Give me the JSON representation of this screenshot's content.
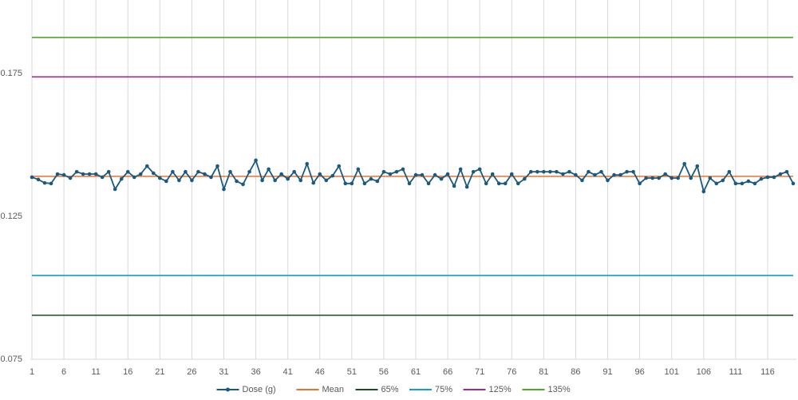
{
  "chart_data": {
    "type": "line",
    "categories": [
      1,
      null,
      null,
      null,
      null,
      6,
      null,
      null,
      null,
      null,
      11,
      null,
      null,
      null,
      null,
      16,
      null,
      null,
      null,
      null,
      21,
      null,
      null,
      null,
      null,
      26,
      null,
      null,
      null,
      null,
      31,
      null,
      null,
      null,
      null,
      36,
      null,
      null,
      null,
      null,
      41,
      null,
      null,
      null,
      null,
      46,
      null,
      null,
      null,
      null,
      51,
      null,
      null,
      null,
      null,
      56,
      null,
      null,
      null,
      null,
      61,
      null,
      null,
      null,
      null,
      66,
      null,
      null,
      null,
      null,
      71,
      null,
      null,
      null,
      null,
      76,
      null,
      null,
      null,
      null,
      81,
      null,
      null,
      null,
      null,
      86,
      null,
      null,
      null,
      null,
      91,
      null,
      null,
      null,
      null,
      96,
      null,
      null,
      null,
      null,
      101,
      null,
      null,
      null,
      null,
      106,
      null,
      null,
      null,
      null,
      111,
      null,
      null,
      null,
      null,
      116,
      null,
      null,
      null,
      null
    ],
    "ylim": [
      0.075,
      0.2
    ],
    "yticks": [
      0.075,
      0.125,
      0.175
    ],
    "grid": "x",
    "series": [
      {
        "name": "Dose (g)",
        "color": "#1b5a80",
        "markers": true,
        "values": [
          0.1387,
          0.1379,
          0.1367,
          0.1365,
          0.1398,
          0.1395,
          0.1384,
          0.1406,
          0.1398,
          0.1398,
          0.1398,
          0.1387,
          0.1406,
          0.1345,
          0.1381,
          0.1406,
          0.1387,
          0.1398,
          0.1426,
          0.1401,
          0.1384,
          0.1373,
          0.1406,
          0.1376,
          0.1406,
          0.1376,
          0.1406,
          0.1398,
          0.1387,
          0.1426,
          0.1345,
          0.1406,
          0.1373,
          0.1362,
          0.1406,
          0.1446,
          0.1376,
          0.1415,
          0.1376,
          0.1398,
          0.1381,
          0.1406,
          0.1376,
          0.1434,
          0.1367,
          0.1398,
          0.1376,
          0.1392,
          0.1426,
          0.1365,
          0.1365,
          0.1415,
          0.1365,
          0.1381,
          0.1373,
          0.1406,
          0.1398,
          0.1406,
          0.1415,
          0.1365,
          0.1395,
          0.1395,
          0.1365,
          0.1395,
          0.1381,
          0.1398,
          0.1356,
          0.1415,
          0.1353,
          0.1406,
          0.1415,
          0.1365,
          0.1398,
          0.1365,
          0.1365,
          0.1398,
          0.1365,
          0.1381,
          0.1406,
          0.1406,
          0.1406,
          0.1406,
          0.1406,
          0.1398,
          0.1406,
          0.1395,
          0.1376,
          0.1406,
          0.1395,
          0.1406,
          0.1376,
          0.1395,
          0.1395,
          0.1406,
          0.1406,
          0.1365,
          0.1384,
          0.1384,
          0.1384,
          0.1398,
          0.1384,
          0.1384,
          0.1434,
          0.1384,
          0.1426,
          0.1337,
          0.1384,
          0.1365,
          0.1376,
          0.1406,
          0.1365,
          0.1365,
          0.1373,
          0.1365,
          0.1381,
          0.1387,
          0.1387,
          0.1398,
          0.1406,
          0.1365
        ]
      },
      {
        "name": "Mean",
        "color": "#e97132",
        "values": [
          0.139,
          0.139,
          0.139,
          0.139,
          0.139,
          0.139,
          0.139,
          0.139,
          0.139,
          0.139,
          0.139,
          0.139,
          0.139,
          0.139,
          0.139,
          0.139,
          0.139,
          0.139,
          0.139,
          0.139,
          0.139,
          0.139,
          0.139,
          0.139,
          0.139,
          0.139,
          0.139,
          0.139,
          0.139,
          0.139,
          0.139,
          0.139,
          0.139,
          0.139,
          0.139,
          0.139,
          0.139,
          0.139,
          0.139,
          0.139,
          0.139,
          0.139,
          0.139,
          0.139,
          0.139,
          0.139,
          0.139,
          0.139,
          0.139,
          0.139,
          0.139,
          0.139,
          0.139,
          0.139,
          0.139,
          0.139,
          0.139,
          0.139,
          0.139,
          0.139,
          0.139,
          0.139,
          0.139,
          0.139,
          0.139,
          0.139,
          0.139,
          0.139,
          0.139,
          0.139,
          0.139,
          0.139,
          0.139,
          0.139,
          0.139,
          0.139,
          0.139,
          0.139,
          0.139,
          0.139,
          0.139,
          0.139,
          0.139,
          0.139,
          0.139,
          0.139,
          0.139,
          0.139,
          0.139,
          0.139,
          0.139,
          0.139,
          0.139,
          0.139,
          0.139,
          0.139,
          0.139,
          0.139,
          0.139,
          0.139,
          0.139,
          0.139,
          0.139,
          0.139,
          0.139,
          0.139,
          0.139,
          0.139,
          0.139,
          0.139,
          0.139,
          0.139,
          0.139,
          0.139,
          0.139,
          0.139,
          0.139,
          0.139,
          0.139,
          0.139
        ]
      },
      {
        "name": "65%",
        "color": "#1a4d22",
        "values": [
          0.0904,
          0.0904,
          0.0904,
          0.0904,
          0.0904,
          0.0904,
          0.0904,
          0.0904,
          0.0904,
          0.0904,
          0.0904,
          0.0904,
          0.0904,
          0.0904,
          0.0904,
          0.0904,
          0.0904,
          0.0904,
          0.0904,
          0.0904,
          0.0904,
          0.0904,
          0.0904,
          0.0904,
          0.0904,
          0.0904,
          0.0904,
          0.0904,
          0.0904,
          0.0904,
          0.0904,
          0.0904,
          0.0904,
          0.0904,
          0.0904,
          0.0904,
          0.0904,
          0.0904,
          0.0904,
          0.0904,
          0.0904,
          0.0904,
          0.0904,
          0.0904,
          0.0904,
          0.0904,
          0.0904,
          0.0904,
          0.0904,
          0.0904,
          0.0904,
          0.0904,
          0.0904,
          0.0904,
          0.0904,
          0.0904,
          0.0904,
          0.0904,
          0.0904,
          0.0904,
          0.0904,
          0.0904,
          0.0904,
          0.0904,
          0.0904,
          0.0904,
          0.0904,
          0.0904,
          0.0904,
          0.0904,
          0.0904,
          0.0904,
          0.0904,
          0.0904,
          0.0904,
          0.0904,
          0.0904,
          0.0904,
          0.0904,
          0.0904,
          0.0904,
          0.0904,
          0.0904,
          0.0904,
          0.0904,
          0.0904,
          0.0904,
          0.0904,
          0.0904,
          0.0904,
          0.0904,
          0.0904,
          0.0904,
          0.0904,
          0.0904,
          0.0904,
          0.0904,
          0.0904,
          0.0904,
          0.0904,
          0.0904,
          0.0904,
          0.0904,
          0.0904,
          0.0904,
          0.0904,
          0.0904,
          0.0904,
          0.0904,
          0.0904,
          0.0904,
          0.0904,
          0.0904,
          0.0904,
          0.0904,
          0.0904,
          0.0904,
          0.0904,
          0.0904,
          0.0904
        ]
      },
      {
        "name": "75%",
        "color": "#0f9ed5",
        "values": [
          0.1043,
          0.1043,
          0.1043,
          0.1043,
          0.1043,
          0.1043,
          0.1043,
          0.1043,
          0.1043,
          0.1043,
          0.1043,
          0.1043,
          0.1043,
          0.1043,
          0.1043,
          0.1043,
          0.1043,
          0.1043,
          0.1043,
          0.1043,
          0.1043,
          0.1043,
          0.1043,
          0.1043,
          0.1043,
          0.1043,
          0.1043,
          0.1043,
          0.1043,
          0.1043,
          0.1043,
          0.1043,
          0.1043,
          0.1043,
          0.1043,
          0.1043,
          0.1043,
          0.1043,
          0.1043,
          0.1043,
          0.1043,
          0.1043,
          0.1043,
          0.1043,
          0.1043,
          0.1043,
          0.1043,
          0.1043,
          0.1043,
          0.1043,
          0.1043,
          0.1043,
          0.1043,
          0.1043,
          0.1043,
          0.1043,
          0.1043,
          0.1043,
          0.1043,
          0.1043,
          0.1043,
          0.1043,
          0.1043,
          0.1043,
          0.1043,
          0.1043,
          0.1043,
          0.1043,
          0.1043,
          0.1043,
          0.1043,
          0.1043,
          0.1043,
          0.1043,
          0.1043,
          0.1043,
          0.1043,
          0.1043,
          0.1043,
          0.1043,
          0.1043,
          0.1043,
          0.1043,
          0.1043,
          0.1043,
          0.1043,
          0.1043,
          0.1043,
          0.1043,
          0.1043,
          0.1043,
          0.1043,
          0.1043,
          0.1043,
          0.1043,
          0.1043,
          0.1043,
          0.1043,
          0.1043,
          0.1043,
          0.1043,
          0.1043,
          0.1043,
          0.1043,
          0.1043,
          0.1043,
          0.1043,
          0.1043,
          0.1043,
          0.1043,
          0.1043,
          0.1043,
          0.1043,
          0.1043,
          0.1043,
          0.1043,
          0.1043,
          0.1043,
          0.1043,
          0.1043
        ]
      },
      {
        "name": "125%",
        "color": "#a02b93",
        "values": [
          0.1738,
          0.1738,
          0.1738,
          0.1738,
          0.1738,
          0.1738,
          0.1738,
          0.1738,
          0.1738,
          0.1738,
          0.1738,
          0.1738,
          0.1738,
          0.1738,
          0.1738,
          0.1738,
          0.1738,
          0.1738,
          0.1738,
          0.1738,
          0.1738,
          0.1738,
          0.1738,
          0.1738,
          0.1738,
          0.1738,
          0.1738,
          0.1738,
          0.1738,
          0.1738,
          0.1738,
          0.1738,
          0.1738,
          0.1738,
          0.1738,
          0.1738,
          0.1738,
          0.1738,
          0.1738,
          0.1738,
          0.1738,
          0.1738,
          0.1738,
          0.1738,
          0.1738,
          0.1738,
          0.1738,
          0.1738,
          0.1738,
          0.1738,
          0.1738,
          0.1738,
          0.1738,
          0.1738,
          0.1738,
          0.1738,
          0.1738,
          0.1738,
          0.1738,
          0.1738,
          0.1738,
          0.1738,
          0.1738,
          0.1738,
          0.1738,
          0.1738,
          0.1738,
          0.1738,
          0.1738,
          0.1738,
          0.1738,
          0.1738,
          0.1738,
          0.1738,
          0.1738,
          0.1738,
          0.1738,
          0.1738,
          0.1738,
          0.1738,
          0.1738,
          0.1738,
          0.1738,
          0.1738,
          0.1738,
          0.1738,
          0.1738,
          0.1738,
          0.1738,
          0.1738,
          0.1738,
          0.1738,
          0.1738,
          0.1738,
          0.1738,
          0.1738,
          0.1738,
          0.1738,
          0.1738,
          0.1738,
          0.1738,
          0.1738,
          0.1738,
          0.1738,
          0.1738,
          0.1738,
          0.1738,
          0.1738,
          0.1738,
          0.1738,
          0.1738,
          0.1738,
          0.1738,
          0.1738,
          0.1738,
          0.1738,
          0.1738,
          0.1738,
          0.1738,
          0.1738
        ]
      },
      {
        "name": "135%",
        "color": "#4ea72e",
        "values": [
          0.1876,
          0.1876,
          0.1876,
          0.1876,
          0.1876,
          0.1876,
          0.1876,
          0.1876,
          0.1876,
          0.1876,
          0.1876,
          0.1876,
          0.1876,
          0.1876,
          0.1876,
          0.1876,
          0.1876,
          0.1876,
          0.1876,
          0.1876,
          0.1876,
          0.1876,
          0.1876,
          0.1876,
          0.1876,
          0.1876,
          0.1876,
          0.1876,
          0.1876,
          0.1876,
          0.1876,
          0.1876,
          0.1876,
          0.1876,
          0.1876,
          0.1876,
          0.1876,
          0.1876,
          0.1876,
          0.1876,
          0.1876,
          0.1876,
          0.1876,
          0.1876,
          0.1876,
          0.1876,
          0.1876,
          0.1876,
          0.1876,
          0.1876,
          0.1876,
          0.1876,
          0.1876,
          0.1876,
          0.1876,
          0.1876,
          0.1876,
          0.1876,
          0.1876,
          0.1876,
          0.1876,
          0.1876,
          0.1876,
          0.1876,
          0.1876,
          0.1876,
          0.1876,
          0.1876,
          0.1876,
          0.1876,
          0.1876,
          0.1876,
          0.1876,
          0.1876,
          0.1876,
          0.1876,
          0.1876,
          0.1876,
          0.1876,
          0.1876,
          0.1876,
          0.1876,
          0.1876,
          0.1876,
          0.1876,
          0.1876,
          0.1876,
          0.1876,
          0.1876,
          0.1876,
          0.1876,
          0.1876,
          0.1876,
          0.1876,
          0.1876,
          0.1876,
          0.1876,
          0.1876,
          0.1876,
          0.1876,
          0.1876,
          0.1876,
          0.1876,
          0.1876,
          0.1876,
          0.1876,
          0.1876,
          0.1876,
          0.1876,
          0.1876,
          0.1876,
          0.1876,
          0.1876,
          0.1876,
          0.1876,
          0.1876,
          0.1876,
          0.1876,
          0.1876,
          0.1876
        ]
      }
    ]
  }
}
